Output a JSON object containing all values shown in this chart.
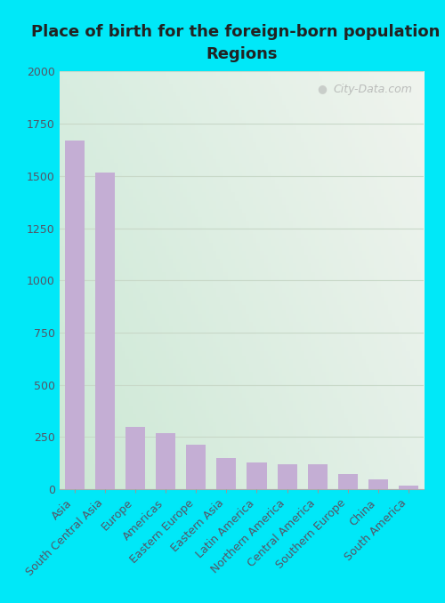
{
  "title": "Place of birth for the foreign-born population -\nRegions",
  "categories": [
    "Asia",
    "South Central Asia",
    "Europe",
    "Americas",
    "Eastern Europe",
    "Eastern Asia",
    "Latin America",
    "Northern America",
    "Central America",
    "Southern Europe",
    "China",
    "South America"
  ],
  "values": [
    1670,
    1515,
    300,
    270,
    215,
    148,
    128,
    120,
    118,
    73,
    47,
    18
  ],
  "bar_color": "#c4aed4",
  "ylim": [
    0,
    2000
  ],
  "yticks": [
    0,
    250,
    500,
    750,
    1000,
    1250,
    1500,
    1750,
    2000
  ],
  "bg_outer": "#00e8f8",
  "bg_plot_topleft": "#d8ede0",
  "bg_plot_topright": "#f0f4ee",
  "bg_plot_bottomleft": "#cce8d4",
  "bg_plot_bottomright": "#e4f0e8",
  "grid_color": "#c8d8c8",
  "watermark": "City-Data.com",
  "title_fontsize": 13,
  "tick_fontsize": 9,
  "label_fontsize": 9,
  "title_color": "#222222",
  "tick_color": "#555566"
}
